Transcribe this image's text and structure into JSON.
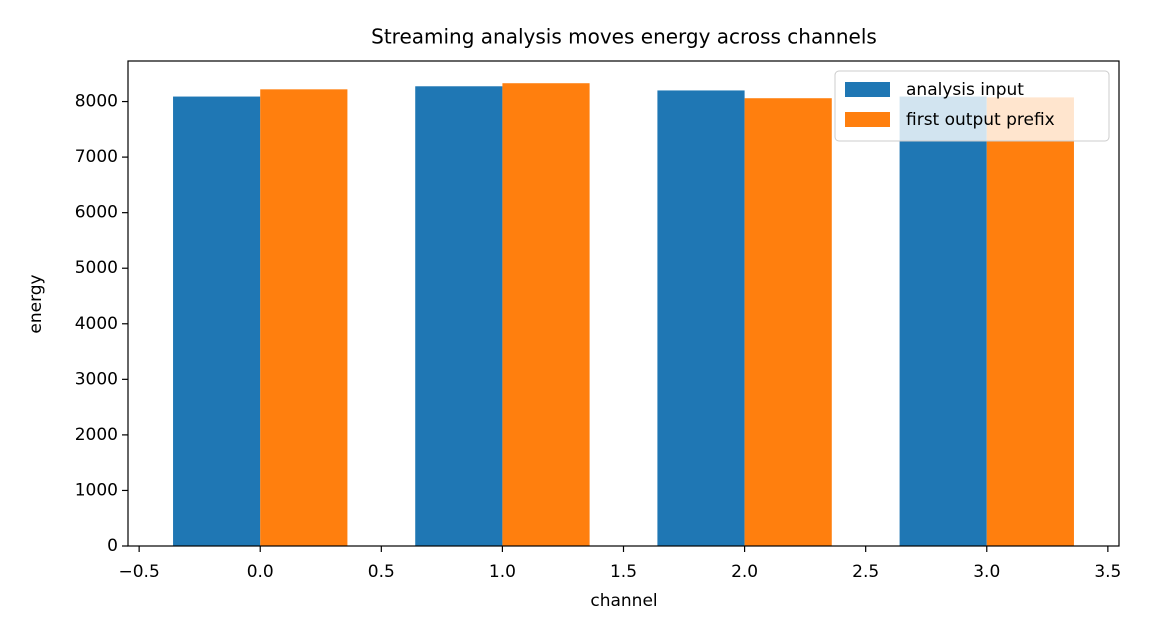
{
  "chart_data": {
    "type": "bar",
    "title": "Streaming analysis moves energy across channels",
    "x_label": "channel",
    "y_label": "energy",
    "x": [
      0,
      1,
      2,
      3
    ],
    "series": [
      {
        "name": "analysis input",
        "color": "#1f77b4",
        "values": [
          8090,
          8275,
          8200,
          8090
        ]
      },
      {
        "name": "first output prefix",
        "color": "#ff7f0e",
        "values": [
          8220,
          8330,
          8060,
          8075
        ]
      }
    ],
    "xlim": [
      -0.546,
      3.546
    ],
    "xticks": [
      {
        "value": -0.5,
        "label": "−0.5"
      },
      {
        "value": 0,
        "label": "0.0"
      },
      0.5,
      {
        "value": 1,
        "label": "1.0"
      },
      1.5,
      {
        "value": 2,
        "label": "2.0"
      },
      2.5,
      {
        "value": 3,
        "label": "3.0"
      },
      3.5
    ],
    "ylim": [
      0,
      8730
    ],
    "yticks": [
      0,
      1000,
      2000,
      3000,
      4000,
      5000,
      6000,
      7000,
      8000
    ],
    "legend": "upper right"
  }
}
